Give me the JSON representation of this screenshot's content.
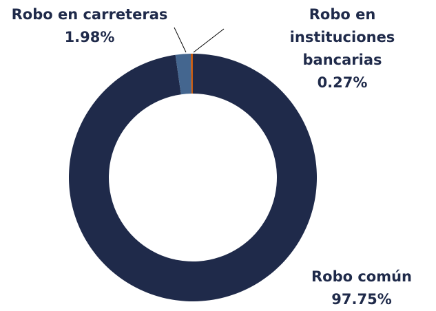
{
  "chart_data": {
    "type": "donut",
    "categories": [
      "Robo común",
      "Robo en carreteras",
      "Robo en instituciones bancarias"
    ],
    "values": [
      97.75,
      1.98,
      0.27
    ],
    "value_labels": [
      "97.75%",
      "1.98%",
      "0.27%"
    ],
    "colors": [
      "#1f2a4a",
      "#44668f",
      "#c55a11"
    ]
  }
}
